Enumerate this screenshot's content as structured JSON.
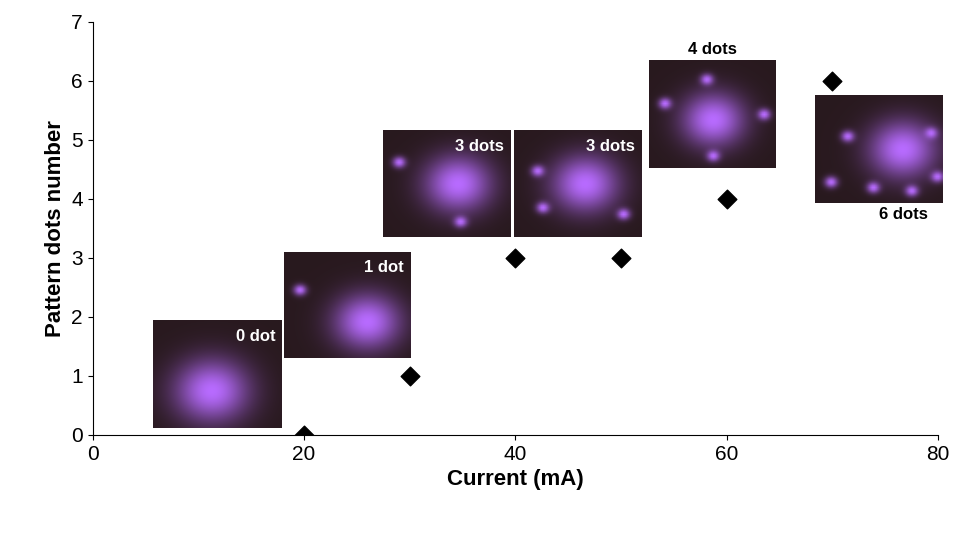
{
  "chart_data": {
    "type": "scatter",
    "x_label": "Current (mA)",
    "y_label": "Pattern dots number",
    "x": [
      20,
      30,
      40,
      50,
      60,
      70
    ],
    "values": [
      0,
      1,
      3,
      3,
      4,
      6
    ],
    "color": "#000000",
    "marker": "diamond",
    "xlim": [
      0,
      80
    ],
    "xticks": [
      0,
      20,
      40,
      60,
      80
    ],
    "ylim": [
      0,
      7
    ],
    "yticks": [
      0,
      1,
      2,
      3,
      4,
      5,
      6,
      7
    ],
    "grid": false,
    "annotations": [
      "0 dot",
      "1 dot",
      "3 dots",
      "3 dots",
      "4 dots",
      "6 dots"
    ]
  }
}
